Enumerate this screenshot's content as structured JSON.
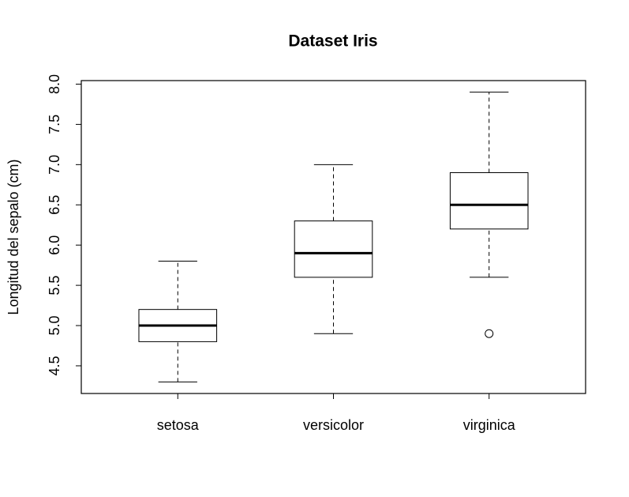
{
  "chart_data": {
    "type": "box",
    "title": "Dataset Iris",
    "y_label": "Longitud del sepalo (cm)",
    "categories": [
      "setosa",
      "versicolor",
      "virginica"
    ],
    "min": [
      4.3,
      4.9,
      5.6
    ],
    "q1": [
      4.8,
      5.6,
      6.2
    ],
    "median": [
      5.0,
      5.9,
      6.5
    ],
    "q3": [
      5.2,
      6.3,
      6.9
    ],
    "max": [
      5.8,
      7.0,
      7.9
    ],
    "outliers": [
      [],
      [],
      [
        4.9
      ]
    ],
    "color": "#000000",
    "ylim": [
      4.156,
      8.044
    ],
    "yticks": [
      4.5,
      {
        "value": 5,
        "label": "5.0"
      },
      5.5,
      {
        "value": 6,
        "label": "6.0"
      },
      6.5,
      {
        "value": 7,
        "label": "7.0"
      },
      7.5,
      {
        "value": 8,
        "label": "8.0"
      }
    ]
  }
}
